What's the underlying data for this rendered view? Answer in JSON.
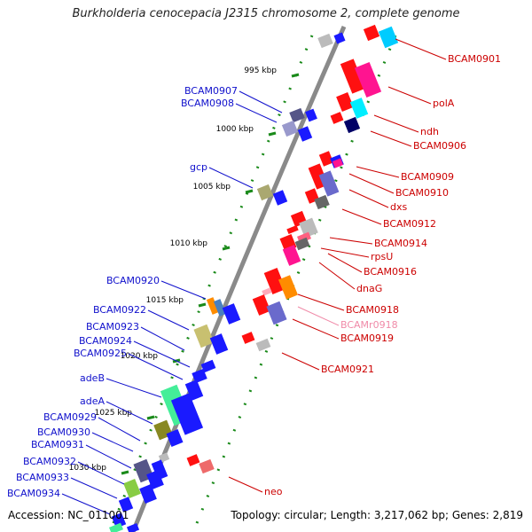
{
  "title": "Burkholderia cenocepacia J2315 chromosome 2, complete genome",
  "footer": {
    "accession": "Accession: NC_011001",
    "topology": "Topology: circular; Length: 3,217,062 bp; Genes: 2,819"
  },
  "scale_labels": [
    "995 kbp",
    "1000 kbp",
    "1005 kbp",
    "1010 kbp",
    "1015 kbp",
    "1020 kbp",
    "1025 kbp",
    "1030 kbp"
  ],
  "left_labels": [
    "BCAM0907",
    "BCAM0908",
    "gcp",
    "BCAM0920",
    "BCAM0922",
    "BCAM0923",
    "BCAM0924",
    "BCAM0925",
    "adeB",
    "adeA",
    "BCAM0929",
    "BCAM0930",
    "BCAM0931",
    "BCAM0932",
    "BCAM0933",
    "BCAM0934"
  ],
  "right_labels": [
    "BCAM0901",
    "polA",
    "ndh",
    "BCAM0906",
    "BCAM0909",
    "BCAM0910",
    "dxs",
    "BCAM0912",
    "BCAM0914",
    "rpsU",
    "BCAM0916",
    "dnaG",
    "BCAM0918",
    "BCAMr0918",
    "BCAM0919",
    "BCAM0921",
    "neo"
  ],
  "colors": {
    "backbone": "#8a8a8a",
    "forward": "#1a1aff",
    "reverse": "#ff1010",
    "tick": "#1a8a1a",
    "label_forward": "#1010cc",
    "label_reverse": "#cc0000",
    "label_rna": "#f08aa8"
  }
}
